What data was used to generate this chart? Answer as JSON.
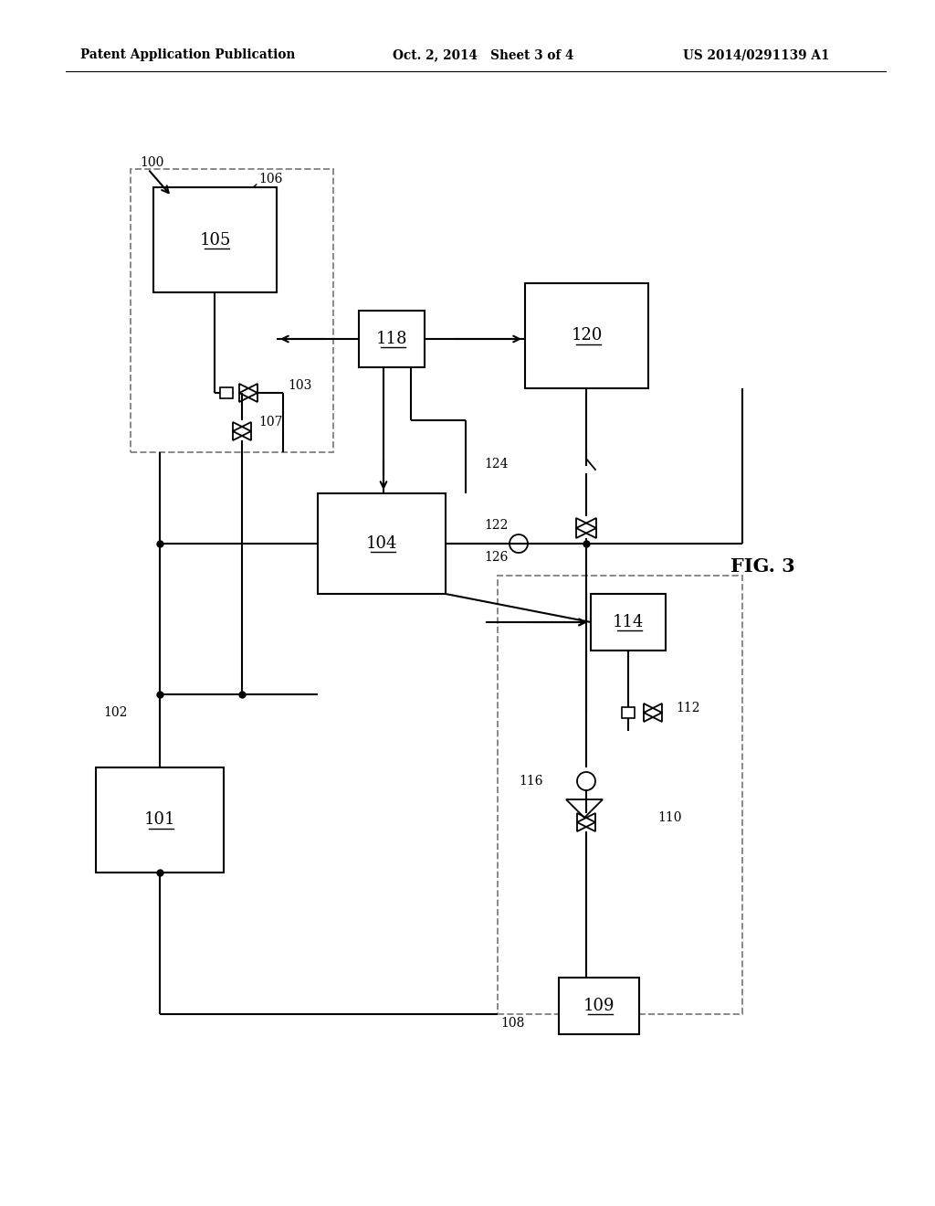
{
  "bg_color": "#ffffff",
  "header_left": "Patent Application Publication",
  "header_center": "Oct. 2, 2014   Sheet 3 of 4",
  "header_right": "US 2014/0291139 A1",
  "fig_label": "FIG. 3"
}
